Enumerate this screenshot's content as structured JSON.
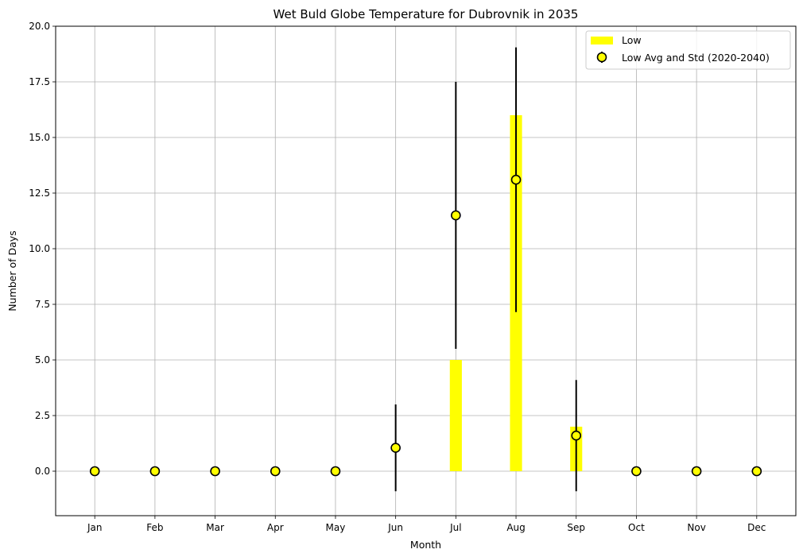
{
  "chart_data": {
    "type": "bar",
    "title": "Wet Buld Globe Temperature for Dubrovnik in 2035",
    "xlabel": "Month",
    "ylabel": "Number of Days",
    "categories": [
      "Jan",
      "Feb",
      "Mar",
      "Apr",
      "May",
      "Jun",
      "Jul",
      "Aug",
      "Sep",
      "Oct",
      "Nov",
      "Dec"
    ],
    "ylim": [
      -2.0,
      20.0
    ],
    "yticks": [
      0.0,
      2.5,
      5.0,
      7.5,
      10.0,
      12.5,
      15.0,
      17.5,
      20.0
    ],
    "ytick_labels": [
      "0.0",
      "2.5",
      "5.0",
      "7.5",
      "10.0",
      "12.5",
      "15.0",
      "17.5",
      "20.0"
    ],
    "grid": true,
    "legend_position": "top-right",
    "series": [
      {
        "name": "Low",
        "kind": "bar",
        "color": "#ffff00",
        "values": [
          0,
          0,
          0,
          0,
          0,
          0,
          5,
          16,
          2,
          0,
          0,
          0
        ]
      },
      {
        "name": "Low Avg and Std (2020-2040)",
        "kind": "errorbar",
        "marker_fill": "#ffff00",
        "marker_edge": "#000000",
        "values": [
          0,
          0,
          0,
          0,
          0,
          1.05,
          11.5,
          13.1,
          1.6,
          0,
          0,
          0
        ],
        "std": [
          0,
          0,
          0,
          0,
          0,
          1.95,
          6.0,
          5.95,
          2.5,
          0,
          0,
          0
        ]
      }
    ]
  }
}
